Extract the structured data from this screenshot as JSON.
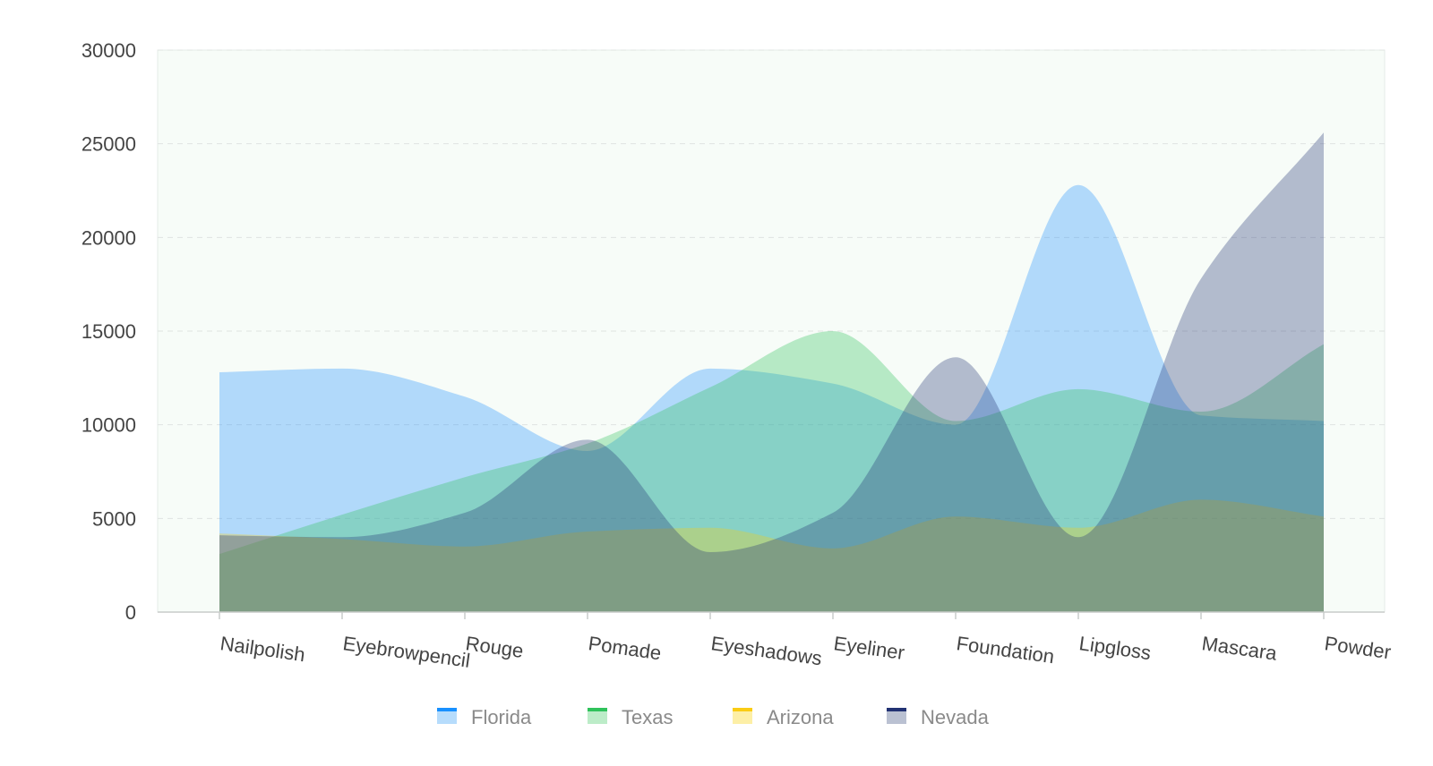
{
  "chart_data": {
    "type": "area",
    "smooth": true,
    "categories": [
      "Nailpolish",
      "Eyebrowpencil",
      "Rouge",
      "Pomade",
      "Eyeshadows",
      "Eyeliner",
      "Foundation",
      "Lipgloss",
      "Mascara",
      "Powder"
    ],
    "ylim": [
      0,
      30000
    ],
    "yticks": [
      0,
      5000,
      10000,
      15000,
      20000,
      25000,
      30000
    ],
    "grid": true,
    "legend_position": "bottom",
    "plot_background": "#f7fcf8",
    "series": [
      {
        "name": "Florida",
        "color": "#1e90ff",
        "legend_color": "#1890ff",
        "fill": "#b6dcfc",
        "values": [
          12800,
          13000,
          11500,
          8600,
          13000,
          12200,
          10000,
          22800,
          10500,
          10200
        ]
      },
      {
        "name": "Texas",
        "color": "#2fc25b",
        "legend_color": "#2fc25b",
        "fill": "#bcecc8",
        "values": [
          3100,
          5200,
          7200,
          9000,
          12000,
          15000,
          10200,
          11900,
          10700,
          14300
        ]
      },
      {
        "name": "Arizona",
        "color": "#facc14",
        "legend_color": "#facc14",
        "fill": "#fdefa6",
        "values": [
          4200,
          3900,
          3500,
          4300,
          4500,
          3400,
          5100,
          4500,
          6000,
          5100
        ]
      },
      {
        "name": "Nevada",
        "color": "#223273",
        "legend_color": "#223273",
        "fill": "#bac1d2",
        "values": [
          4100,
          4000,
          5300,
          9200,
          3200,
          5300,
          13600,
          4000,
          17800,
          25600
        ]
      }
    ]
  }
}
